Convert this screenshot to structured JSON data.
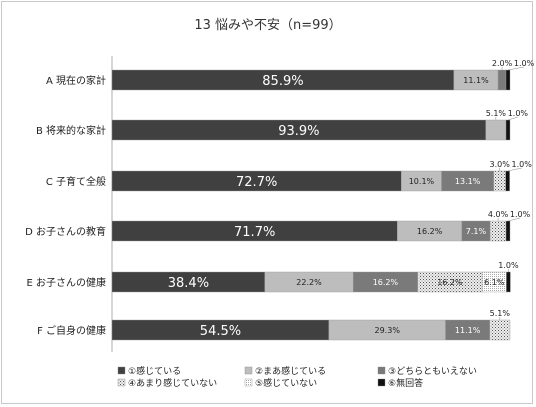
{
  "chart_data": {
    "type": "bar",
    "orientation": "horizontal-stacked-100",
    "title": "13 悩みや不安（n=99）",
    "categories": [
      "A 現在の家計",
      "B 将来的な家計",
      "C 子育て全般",
      "D お子さんの教育",
      "E お子さんの健康",
      "F ご自身の健康"
    ],
    "series": [
      {
        "name": "①感じている",
        "color": "#404040",
        "pattern": "solid",
        "values": [
          85.9,
          93.9,
          72.7,
          71.7,
          38.4,
          54.5
        ],
        "labels": [
          "85.9%",
          "93.9%",
          "72.7%",
          "71.7%",
          "38.4%",
          "54.5%"
        ]
      },
      {
        "name": "②まあ感じている",
        "color": "#bdbdbd",
        "pattern": "solid",
        "values": [
          11.1,
          5.1,
          10.1,
          16.2,
          22.2,
          29.3
        ],
        "labels": [
          "11.1%",
          "5.1%",
          "10.1%",
          "16.2%",
          "22.2%",
          "29.3%"
        ]
      },
      {
        "name": "③どちらともいえない",
        "color": "#7a7a7a",
        "pattern": "solid",
        "values": [
          2.0,
          0,
          13.1,
          7.1,
          16.2,
          11.1
        ],
        "labels": [
          "2.0%",
          "",
          "13.1%",
          "7.1%",
          "16.2%",
          "11.1%"
        ]
      },
      {
        "name": "④あまり感じていない",
        "color": "#d9d9d9",
        "pattern": "dots",
        "values": [
          0,
          0,
          3.0,
          4.0,
          16.2,
          5.1
        ],
        "labels": [
          "",
          "",
          "3.0%",
          "4.0%",
          "16.2%",
          "5.1%"
        ]
      },
      {
        "name": "⑤感じていない",
        "color": "#f2f2f2",
        "pattern": "dense",
        "values": [
          0,
          0,
          0,
          0,
          6.1,
          0
        ],
        "labels": [
          "",
          "",
          "",
          "",
          "6.1%",
          ""
        ]
      },
      {
        "name": "⑥無回答",
        "color": "#111111",
        "pattern": "solid",
        "values": [
          1.0,
          1.0,
          1.0,
          1.0,
          1.0,
          0
        ],
        "labels": [
          "1.0%",
          "1.0%",
          "1.0%",
          "1.0%",
          "1.0%",
          ""
        ]
      }
    ],
    "xlim": [
      0,
      100
    ],
    "grid": false,
    "legend_position": "bottom"
  }
}
